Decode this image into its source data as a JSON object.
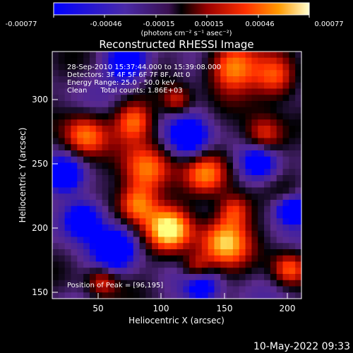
{
  "colorbar": {
    "ticks": [
      "-0.00077",
      "-0.00046",
      "-0.00015",
      "0.00015",
      "0.00046",
      "0.00077"
    ],
    "units_label": "(photons cm⁻² s⁻¹ asec⁻²)"
  },
  "plot": {
    "title": "Reconstructed RHESSI Image",
    "xlabel": "Heliocentric X (arcsec)",
    "ylabel": "Heliocentric Y (arcsec)",
    "xticks": [
      "50",
      "100",
      "150",
      "200"
    ],
    "yticks": [
      "150",
      "200",
      "250",
      "300"
    ],
    "info": [
      "28-Sep-2010 15:37:44.000 to 15:39:08.000",
      "Detectors: 3F 4F 5F 6F 7F 8F, Att 0",
      "Energy Range: 25.0 - 50.0 keV",
      "Clean      Total counts: 1.86E+03"
    ],
    "peak_label": "Position of Peak = [96,195]"
  },
  "footer": {
    "timestamp": "10-May-2022 09:33"
  },
  "colors": {
    "background": "#000000",
    "colormap": [
      "#0000ff",
      "#3c1fa8",
      "#5a2a8c",
      "#000000",
      "#8b0000",
      "#ff2a00",
      "#ff8c00",
      "#ffff80"
    ]
  },
  "chart_data": {
    "type": "heatmap",
    "title": "Reconstructed RHESSI Image",
    "xlabel": "Heliocentric X (arcsec)",
    "ylabel": "Heliocentric Y (arcsec)",
    "xlim": [
      15,
      210
    ],
    "ylim": [
      145,
      335
    ],
    "colorbar_range": [
      -0.00077,
      0.00077
    ],
    "peak": [
      96,
      195
    ],
    "grid": false
  }
}
